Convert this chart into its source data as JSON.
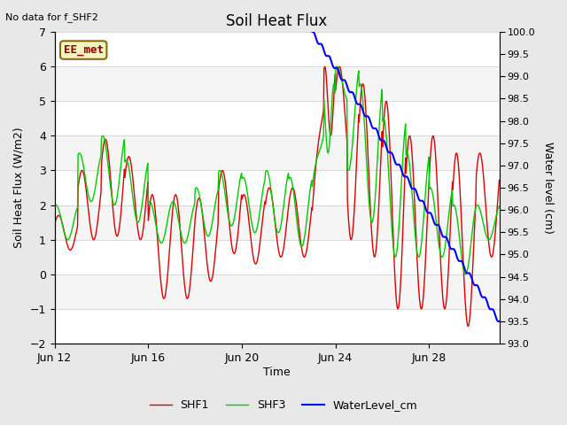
{
  "title": "Soil Heat Flux",
  "title_note": "No data for f_SHF2",
  "ylabel_left": "Soil Heat Flux (W/m2)",
  "ylabel_right": "Water level (cm)",
  "xlabel": "Time",
  "ylim_left": [
    -2.0,
    7.0
  ],
  "ylim_right": [
    93.0,
    100.0
  ],
  "yticks_left": [
    -2.0,
    -1.0,
    0.0,
    1.0,
    2.0,
    3.0,
    4.0,
    5.0,
    6.0,
    7.0
  ],
  "yticks_right": [
    93.0,
    93.5,
    94.0,
    94.5,
    95.0,
    95.5,
    96.0,
    96.5,
    97.0,
    97.5,
    98.0,
    98.5,
    99.0,
    99.5,
    100.0
  ],
  "xlim": [
    0,
    19
  ],
  "xtick_labels": [
    "Jun 12",
    "Jun 16",
    "Jun 20",
    "Jun 24",
    "Jun 28"
  ],
  "xtick_positions": [
    0,
    4,
    8,
    12,
    16
  ],
  "legend_labels": [
    "SHF1",
    "SHF3",
    "WaterLevel_cm"
  ],
  "station_label": "EE_met",
  "bg_color": "#e8e8e8",
  "plot_bg_light": "#f5f5f5",
  "plot_bg_dark": "#e0e0e0",
  "grid_color": "#ffffff",
  "shf1_color": "#dd0000",
  "shf3_color": "#00cc00",
  "water_color": "#0000ff",
  "figsize": [
    6.4,
    4.8
  ],
  "dpi": 100
}
